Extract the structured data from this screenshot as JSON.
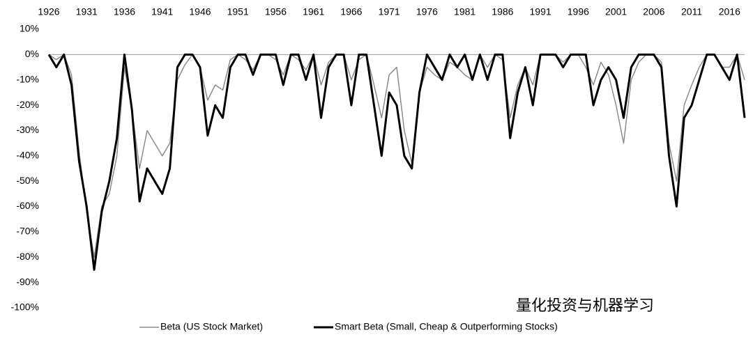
{
  "chart_data": {
    "type": "line",
    "x": [
      1926,
      1927,
      1928,
      1929,
      1930,
      1931,
      1932,
      1933,
      1934,
      1935,
      1936,
      1937,
      1938,
      1939,
      1940,
      1941,
      1942,
      1943,
      1944,
      1945,
      1946,
      1947,
      1948,
      1949,
      1950,
      1951,
      1952,
      1953,
      1954,
      1955,
      1956,
      1957,
      1958,
      1959,
      1960,
      1961,
      1962,
      1963,
      1964,
      1965,
      1966,
      1967,
      1968,
      1969,
      1970,
      1971,
      1972,
      1973,
      1974,
      1975,
      1976,
      1977,
      1978,
      1979,
      1980,
      1981,
      1982,
      1983,
      1984,
      1985,
      1986,
      1987,
      1988,
      1989,
      1990,
      1991,
      1992,
      1993,
      1994,
      1995,
      1996,
      1997,
      1998,
      1999,
      2000,
      2001,
      2002,
      2003,
      2004,
      2005,
      2006,
      2007,
      2008,
      2009,
      2010,
      2011,
      2012,
      2013,
      2014,
      2015,
      2016,
      2017,
      2018
    ],
    "series": [
      {
        "name": "Beta (US Stock Market)",
        "color": "#8c8c8c",
        "values": [
          0,
          -2,
          0,
          -8,
          -38,
          -62,
          -80,
          -60,
          -55,
          -40,
          -5,
          -22,
          -45,
          -30,
          -35,
          -40,
          -35,
          -10,
          -4,
          0,
          -5,
          -18,
          -12,
          -14,
          -2,
          0,
          -2,
          -6,
          0,
          0,
          -2,
          -8,
          0,
          -2,
          -6,
          0,
          -12,
          -3,
          0,
          0,
          -10,
          -2,
          0,
          -12,
          -25,
          -8,
          -5,
          -30,
          -43,
          -15,
          -5,
          -8,
          -10,
          -3,
          -5,
          -8,
          -10,
          0,
          -5,
          0,
          -2,
          -25,
          -12,
          -5,
          -12,
          0,
          0,
          0,
          -3,
          0,
          0,
          -5,
          -12,
          -3,
          -8,
          -20,
          -35,
          -10,
          -3,
          0,
          0,
          -3,
          -35,
          -50,
          -20,
          -12,
          -5,
          0,
          0,
          -5,
          -5,
          0,
          -10
        ]
      },
      {
        "name": "Smart Beta (Small, Cheap & Outperforming Stocks)",
        "color": "#000000",
        "values": [
          0,
          -5,
          0,
          -12,
          -42,
          -60,
          -85,
          -62,
          -50,
          -33,
          0,
          -22,
          -58,
          -45,
          -50,
          -55,
          -45,
          -5,
          0,
          0,
          -5,
          -32,
          -20,
          -25,
          -5,
          0,
          0,
          -8,
          0,
          0,
          0,
          -12,
          0,
          0,
          -10,
          0,
          -25,
          -5,
          0,
          0,
          -20,
          0,
          0,
          -20,
          -40,
          -15,
          -20,
          -40,
          -45,
          -15,
          0,
          -5,
          -10,
          0,
          -5,
          0,
          -10,
          0,
          -10,
          0,
          0,
          -33,
          -15,
          -5,
          -20,
          0,
          0,
          0,
          -5,
          0,
          0,
          0,
          -20,
          -10,
          -5,
          -10,
          -25,
          -5,
          0,
          0,
          0,
          -5,
          -40,
          -60,
          -25,
          -20,
          -10,
          0,
          0,
          -5,
          -10,
          0,
          -25
        ]
      }
    ],
    "xlim": [
      1926,
      2018
    ],
    "xticks": [
      1926,
      1931,
      1936,
      1941,
      1946,
      1951,
      1956,
      1961,
      1966,
      1971,
      1976,
      1981,
      1986,
      1991,
      1996,
      2001,
      2006,
      2011,
      2016
    ],
    "ylim": [
      -100,
      10
    ],
    "yticks": [
      {
        "value": 10,
        "label": "10%"
      },
      {
        "value": 0,
        "label": "0%"
      },
      {
        "value": -10,
        "label": "-10%"
      },
      {
        "value": -20,
        "label": "-20%"
      },
      {
        "value": -30,
        "label": "-30%"
      },
      {
        "value": -40,
        "label": "-40%"
      },
      {
        "value": -50,
        "label": "-50%"
      },
      {
        "value": -60,
        "label": "-60%"
      },
      {
        "value": -70,
        "label": "-70%"
      },
      {
        "value": -80,
        "label": "-80%"
      },
      {
        "value": -90,
        "label": "-90%"
      },
      {
        "value": -100,
        "label": "-100%"
      }
    ],
    "watermark": "量化投资与机器学习"
  }
}
